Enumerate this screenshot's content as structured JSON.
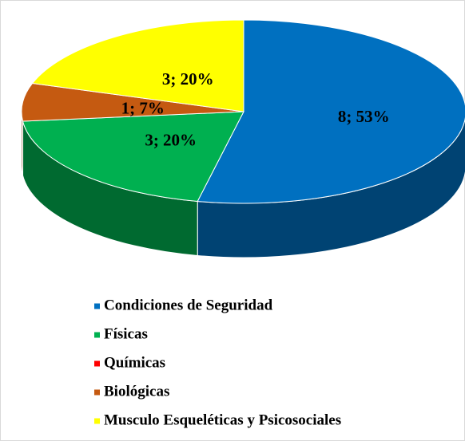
{
  "chart_data": {
    "type": "pie",
    "categories": [
      "Condiciones de Seguridad",
      "Físicas",
      "Químicas",
      "Biológicas",
      "Musculo Esqueléticas y Psicosociales"
    ],
    "values": [
      8,
      3,
      0,
      1,
      3
    ],
    "value_labels": [
      "8; 53%",
      "3; 20%",
      null,
      "1; 7%",
      "3; 20%"
    ],
    "colors": [
      "#0070c0",
      "#00b050",
      "#ff0000",
      "#c55a11",
      "#ffff00"
    ],
    "legend": "bottom"
  }
}
